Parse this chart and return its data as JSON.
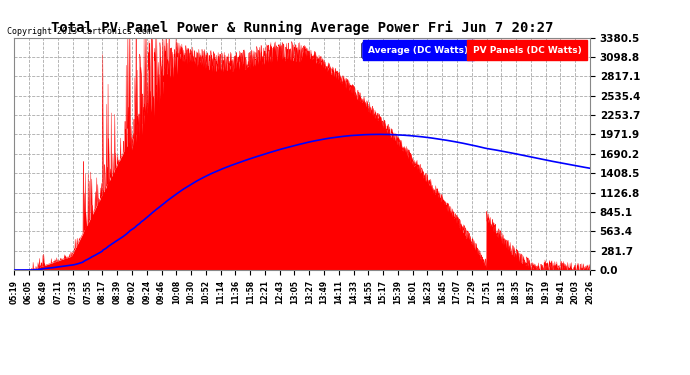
{
  "title": "Total PV Panel Power & Running Average Power Fri Jun 7 20:27",
  "copyright": "Copyright 2013 Cartronics.com",
  "legend_avg": "Average (DC Watts)",
  "legend_pv": "PV Panels (DC Watts)",
  "yticks": [
    0.0,
    281.7,
    563.4,
    845.1,
    1126.8,
    1408.5,
    1690.2,
    1971.9,
    2253.7,
    2535.4,
    2817.1,
    3098.8,
    3380.5
  ],
  "xlabels": [
    "05:19",
    "06:05",
    "06:49",
    "07:11",
    "07:33",
    "07:55",
    "08:17",
    "08:39",
    "09:02",
    "09:24",
    "09:46",
    "10:08",
    "10:30",
    "10:52",
    "11:14",
    "11:36",
    "11:58",
    "12:21",
    "12:43",
    "13:05",
    "13:27",
    "13:49",
    "14:11",
    "14:33",
    "14:55",
    "15:17",
    "15:39",
    "16:01",
    "16:23",
    "16:45",
    "17:07",
    "17:29",
    "17:51",
    "18:13",
    "18:35",
    "18:57",
    "19:19",
    "19:41",
    "20:03",
    "20:26"
  ],
  "fig_bg": "#ffffff",
  "plot_bg": "#ffffff",
  "grid_color": "#aaaaaa",
  "pv_color": "#ff0000",
  "avg_color": "#0000ff",
  "title_color": "#000000",
  "ymax": 3380.5,
  "ymin": 0.0
}
